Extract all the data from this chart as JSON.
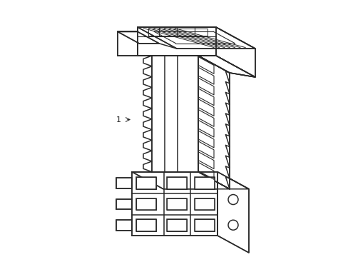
{
  "bg_color": "#ffffff",
  "line_color": "#2a2a2a",
  "line_width": 1.1,
  "figsize": [
    4.89,
    3.6
  ],
  "dpi": 100,
  "label": "1"
}
